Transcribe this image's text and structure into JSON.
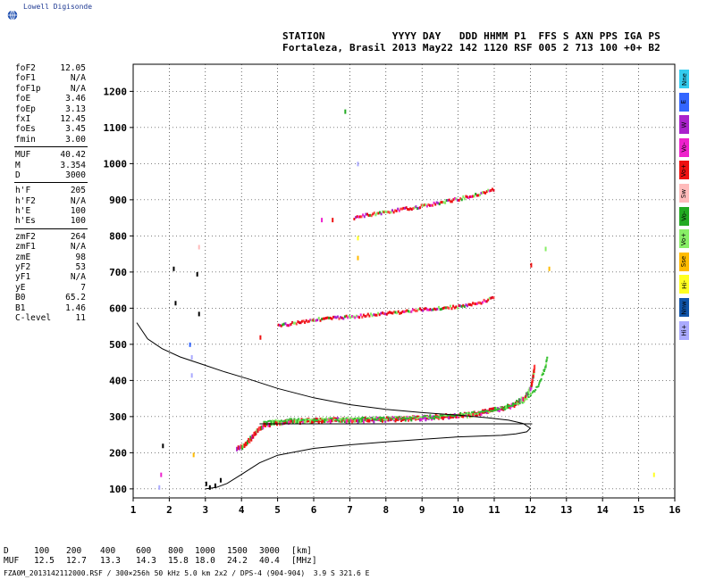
{
  "logo": {
    "text": "Lowell Digisonde"
  },
  "header": {
    "row1": "STATION           YYYY DAY   DDD HHMM P1  FFS S AXN PPS IGA PS",
    "row2": "Fortaleza, Brasil 2013 May22 142 1120 RSF 005 2 713 100 +0+ B2"
  },
  "parameters": {
    "group1": [
      {
        "name": "foF2",
        "value": "12.05"
      },
      {
        "name": "foF1",
        "value": "N/A"
      },
      {
        "name": "foF1p",
        "value": "N/A"
      },
      {
        "name": "foE",
        "value": "3.46"
      },
      {
        "name": "foEp",
        "value": "3.13"
      },
      {
        "name": "fxI",
        "value": "12.45"
      },
      {
        "name": "foEs",
        "value": "3.45"
      },
      {
        "name": "fmin",
        "value": "3.00"
      }
    ],
    "group2": [
      {
        "name": "MUF",
        "value": "40.42"
      },
      {
        "name": "M",
        "value": "3.354"
      },
      {
        "name": "D",
        "value": "3000"
      }
    ],
    "group3": [
      {
        "name": "h'F",
        "value": "205"
      },
      {
        "name": "h'F2",
        "value": "N/A"
      },
      {
        "name": "h'E",
        "value": "100"
      },
      {
        "name": "h'Es",
        "value": "100"
      }
    ],
    "group4": [
      {
        "name": "zmF2",
        "value": "264"
      },
      {
        "name": "zmF1",
        "value": "N/A"
      },
      {
        "name": "zmE",
        "value": "98"
      },
      {
        "name": "yF2",
        "value": "53"
      },
      {
        "name": "yF1",
        "value": "N/A"
      },
      {
        "name": "yE",
        "value": "7"
      },
      {
        "name": "B0",
        "value": "65.2"
      },
      {
        "name": "B1",
        "value": "1.46"
      },
      {
        "name": "C-level",
        "value": "11"
      }
    ]
  },
  "legend": [
    {
      "label": "Nne",
      "color": "#33ccee"
    },
    {
      "label": "E",
      "color": "#3366ff"
    },
    {
      "label": "W",
      "color": "#aa22cc"
    },
    {
      "label": "Vo-",
      "color": "#ee22cc"
    },
    {
      "label": "Vo+",
      "color": "#ee1111"
    },
    {
      "label": "Sw",
      "color": "#ffbbbb"
    },
    {
      "label": "Vo-",
      "color": "#22aa22"
    },
    {
      "label": "Vo+",
      "color": "#88ee66"
    },
    {
      "label": "Sse",
      "color": "#ffbb00"
    },
    {
      "label": "Hi-",
      "color": "#ffff22"
    },
    {
      "label": "Nnw",
      "color": "#1155aa"
    },
    {
      "label": "Hi+",
      "color": "#aaaaff"
    }
  ],
  "muf_table": {
    "row1_label": "D",
    "row2_label": "MUF",
    "distances": [
      "100",
      "200",
      "400",
      "600",
      "800",
      "1000",
      "1500",
      "3000"
    ],
    "muf_values": [
      "12.5",
      "12.7",
      "13.3",
      "14.3",
      "15.8",
      "18.0",
      "24.2",
      "40.4"
    ],
    "unit1": "[km]",
    "unit2": "[MHz]"
  },
  "footer": "FZA0M_2013142112000.RSF / 300×256h 50 kHz 5.0 km 2x2 / DPS-4 (904-904)  3.9 S 321.6 E",
  "chart_data": {
    "type": "scatter",
    "xlim": [
      1,
      16
    ],
    "ylim": [
      75,
      1275
    ],
    "xticks": [
      1,
      2,
      3,
      4,
      5,
      6,
      7,
      8,
      9,
      10,
      11,
      12,
      13,
      14,
      15,
      16
    ],
    "yticks": [
      100,
      200,
      300,
      400,
      500,
      600,
      700,
      800,
      900,
      1000,
      1100,
      1200
    ],
    "grid": "dotted",
    "ionogram_traces": [
      {
        "name": "F-layer 1-hop",
        "points": [
          [
            3.85,
            210
          ],
          [
            4.0,
            215
          ],
          [
            4.2,
            235
          ],
          [
            4.4,
            258
          ],
          [
            4.6,
            275
          ],
          [
            4.8,
            281
          ],
          [
            5.2,
            285
          ],
          [
            6,
            288
          ],
          [
            7,
            290
          ],
          [
            8,
            292
          ],
          [
            9,
            296
          ],
          [
            10,
            302
          ],
          [
            10.5,
            307
          ],
          [
            11,
            318
          ],
          [
            11.5,
            330
          ],
          [
            11.8,
            350
          ],
          [
            12.0,
            380
          ],
          [
            12.1,
            440
          ]
        ]
      },
      {
        "name": "F-layer 2-hop",
        "points": [
          [
            5.0,
            550
          ],
          [
            5.5,
            560
          ],
          [
            6,
            568
          ],
          [
            7,
            576
          ],
          [
            8,
            585
          ],
          [
            9,
            596
          ],
          [
            10,
            604
          ],
          [
            10.5,
            612
          ],
          [
            11,
            630
          ]
        ]
      },
      {
        "name": "F-layer 3-hop",
        "points": [
          [
            7.1,
            850
          ],
          [
            7.5,
            858
          ],
          [
            8,
            866
          ],
          [
            8.5,
            874
          ],
          [
            9,
            882
          ],
          [
            9.5,
            892
          ],
          [
            10,
            902
          ],
          [
            10.5,
            914
          ],
          [
            11.0,
            930
          ]
        ]
      },
      {
        "name": "X-component",
        "points": [
          [
            4.6,
            282
          ],
          [
            5,
            290
          ],
          [
            6,
            292
          ],
          [
            7,
            293
          ],
          [
            8,
            295
          ],
          [
            9,
            298
          ],
          [
            10,
            304
          ],
          [
            11,
            318
          ],
          [
            11.8,
            340
          ],
          [
            12.2,
            385
          ],
          [
            12.4,
            440
          ],
          [
            12.45,
            470
          ]
        ]
      }
    ],
    "profile_curve": {
      "name": "Electron density profile",
      "points": [
        [
          1.1,
          560
        ],
        [
          1.4,
          515
        ],
        [
          1.8,
          488
        ],
        [
          2.3,
          465
        ],
        [
          2.9,
          445
        ],
        [
          3.5,
          425
        ],
        [
          4.2,
          404
        ],
        [
          5,
          378
        ],
        [
          6,
          352
        ],
        [
          7,
          333
        ],
        [
          8,
          320
        ],
        [
          9,
          311
        ],
        [
          10,
          304
        ],
        [
          10.8,
          297
        ],
        [
          11.4,
          290
        ],
        [
          11.8,
          281
        ],
        [
          12.0,
          268
        ],
        [
          11.9,
          258
        ],
        [
          11.6,
          252
        ],
        [
          11.2,
          248
        ],
        [
          10.6,
          246
        ],
        [
          10,
          244
        ],
        [
          9,
          237
        ],
        [
          8,
          230
        ],
        [
          7,
          222
        ],
        [
          6,
          212
        ],
        [
          5,
          193
        ],
        [
          4.5,
          172
        ],
        [
          4.0,
          140
        ],
        [
          3.6,
          115
        ],
        [
          3.3,
          104
        ],
        [
          3.0,
          100
        ]
      ]
    },
    "reference_line": {
      "x1": 4.5,
      "x2": 12.05,
      "y": 280
    }
  }
}
